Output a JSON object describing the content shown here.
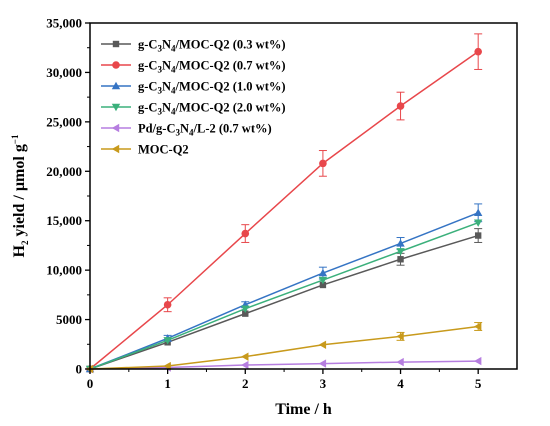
{
  "chart_data": {
    "type": "line",
    "title": "",
    "xlabel": "Time / h",
    "ylabel": {
      "prefix": "H",
      "subscript": "2",
      "main": " yield / µmol g",
      "superscript": "−1"
    },
    "xlim": [
      0,
      5.5
    ],
    "ylim": [
      0,
      35000
    ],
    "x_ticks": [
      0,
      1,
      2,
      3,
      4,
      5
    ],
    "y_ticks": [
      0,
      5000,
      10000,
      15000,
      20000,
      25000,
      30000,
      35000
    ],
    "y_tick_labels": [
      "0",
      "5000",
      "10,000",
      "15,000",
      "20,000",
      "25,000",
      "30,000",
      "35,000"
    ],
    "grid": false,
    "legend": "top-left",
    "x": [
      0,
      1,
      2,
      3,
      4,
      5
    ],
    "series": [
      {
        "name": "g-C3N4/MOC-Q2 (0.3 wt%)",
        "name_parts": [
          "g-C",
          "3",
          "N",
          "4",
          "/MOC-Q2 (0.3 wt%)"
        ],
        "color": "#595959",
        "marker": "square",
        "values": [
          0,
          2700,
          5600,
          8500,
          11100,
          13500
        ],
        "errors": [
          0,
          0,
          0,
          0,
          600,
          700
        ]
      },
      {
        "name": "g-C3N4/MOC-Q2 (0.7 wt%)",
        "name_parts": [
          "g-C",
          "3",
          "N",
          "4",
          "/MOC-Q2 (0.7 wt%)"
        ],
        "color": "#e8474b",
        "marker": "circle",
        "values": [
          0,
          6500,
          13700,
          20800,
          26600,
          32100
        ],
        "errors": [
          0,
          700,
          900,
          1300,
          1400,
          1800
        ]
      },
      {
        "name": "g-C3N4/MOC-Q2 (1.0 wt%)",
        "name_parts": [
          "g-C",
          "3",
          "N",
          "4",
          "/MOC-Q2 (1.0 wt%)"
        ],
        "color": "#3574c4",
        "marker": "triangle-up",
        "values": [
          0,
          3100,
          6500,
          9700,
          12700,
          15800
        ],
        "errors": [
          0,
          300,
          300,
          600,
          600,
          900
        ]
      },
      {
        "name": "g-C3N4/MOC-Q2 (2.0 wt%)",
        "name_parts": [
          "g-C",
          "3",
          "N",
          "4",
          "/MOC-Q2 (2.0 wt%)"
        ],
        "color": "#3bb07b",
        "marker": "triangle-down",
        "values": [
          0,
          2900,
          6100,
          9000,
          11900,
          14800
        ],
        "errors": [
          0,
          0,
          0,
          0,
          0,
          0
        ]
      },
      {
        "name": "Pd/g-C3N4/L-2 (0.7 wt%)",
        "name_parts": [
          "Pd/g-C",
          "3",
          "N",
          "4",
          "/L-2 (0.7 wt%)"
        ],
        "color": "#b67ee0",
        "marker": "triangle-left",
        "values": [
          0,
          150,
          400,
          550,
          700,
          800
        ],
        "errors": [
          0,
          0,
          0,
          0,
          0,
          0
        ]
      },
      {
        "name": "MOC-Q2",
        "name_parts": [
          "MOC-Q2"
        ],
        "color": "#c89a1c",
        "marker": "triangle-left",
        "values": [
          0,
          300,
          1250,
          2450,
          3300,
          4300
        ],
        "errors": [
          0,
          0,
          0,
          0,
          400,
          400
        ]
      }
    ]
  }
}
